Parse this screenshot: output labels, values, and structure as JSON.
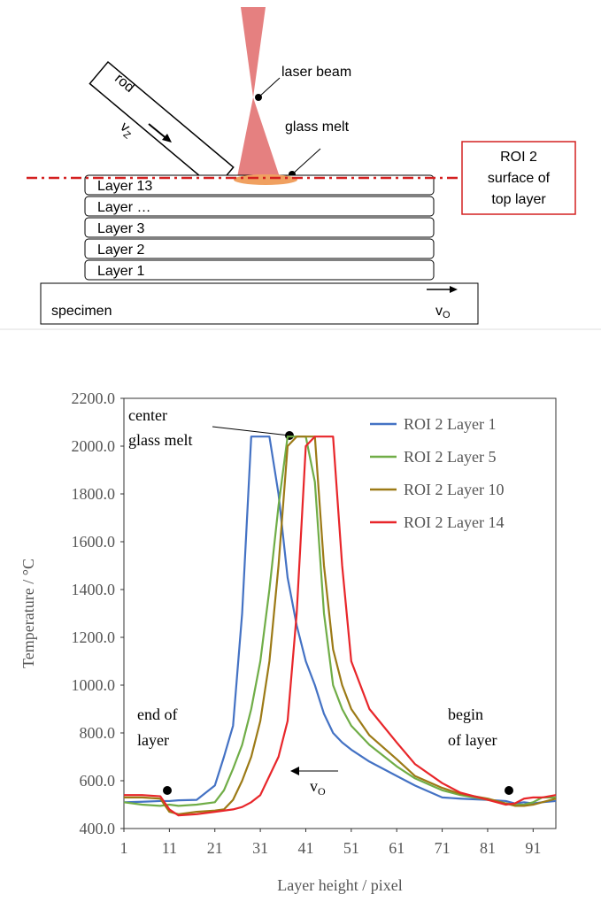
{
  "diagram": {
    "rod": "rod",
    "vz": {
      "main": "v",
      "sub": "Z"
    },
    "laser_beam": "laser beam",
    "glass_melt": "glass melt",
    "roi_box": [
      "ROI 2",
      "surface of",
      "top layer"
    ],
    "layers": [
      "Layer 13",
      "Layer …",
      "Layer 3",
      "Layer 2",
      "Layer 1"
    ],
    "specimen": "specimen",
    "vo": {
      "main": "v",
      "sub": "O"
    }
  },
  "chart_data": {
    "type": "line",
    "x_label": "Layer height / pixel",
    "y_label": "Temperature / °C",
    "xlim": [
      1,
      96
    ],
    "ylim": [
      400,
      2200
    ],
    "xticks": [
      1,
      11,
      21,
      31,
      41,
      51,
      61,
      71,
      81,
      91
    ],
    "yticks": [
      {
        "value": 400,
        "label": "400.0"
      },
      {
        "value": 600,
        "label": "600.0"
      },
      {
        "value": 800,
        "label": "800.0"
      },
      {
        "value": 1000,
        "label": "1000.0"
      },
      {
        "value": 1200,
        "label": "1200.0"
      },
      {
        "value": 1400,
        "label": "1400.0"
      },
      {
        "value": 1600,
        "label": "1600.0"
      },
      {
        "value": 1800,
        "label": "1800.0"
      },
      {
        "value": 2000,
        "label": "2000.0"
      },
      {
        "value": 2200,
        "label": "2200.0"
      }
    ],
    "legend": "upper right",
    "x": [
      1,
      5,
      9,
      11,
      13,
      17,
      21,
      23,
      25,
      27,
      29,
      31,
      33,
      35,
      37,
      39,
      41,
      43,
      45,
      47,
      49,
      51,
      55,
      61,
      65,
      71,
      75,
      81,
      85,
      87,
      89,
      91,
      93,
      96
    ],
    "series": [
      {
        "name": "ROI 2 Layer 1",
        "color": "#4472c4",
        "values": [
          510,
          512,
          515,
          515,
          518,
          520,
          580,
          700,
          830,
          1300,
          2040,
          2040,
          2040,
          1800,
          1450,
          1250,
          1100,
          1000,
          880,
          800,
          760,
          730,
          680,
          620,
          580,
          530,
          525,
          520,
          515,
          505,
          510,
          505,
          510,
          515
        ]
      },
      {
        "name": "ROI 2 Layer 5",
        "color": "#70ad47",
        "values": [
          510,
          500,
          495,
          500,
          495,
          500,
          510,
          560,
          650,
          750,
          900,
          1100,
          1400,
          1750,
          2040,
          2040,
          2040,
          1850,
          1300,
          1000,
          900,
          830,
          750,
          660,
          610,
          560,
          540,
          520,
          505,
          500,
          500,
          510,
          530,
          530
        ]
      },
      {
        "name": "ROI 2 Layer 10",
        "color": "#9c7a16",
        "values": [
          530,
          530,
          525,
          470,
          460,
          470,
          475,
          480,
          520,
          600,
          700,
          850,
          1100,
          1500,
          2000,
          2040,
          2040,
          2040,
          1500,
          1150,
          1000,
          900,
          790,
          690,
          620,
          570,
          545,
          525,
          505,
          495,
          495,
          500,
          510,
          525
        ]
      },
      {
        "name": "ROI 2 Layer 14",
        "color": "#e8262a",
        "values": [
          540,
          540,
          535,
          480,
          455,
          460,
          470,
          475,
          480,
          490,
          510,
          540,
          620,
          700,
          850,
          1300,
          2000,
          2040,
          2040,
          2040,
          1500,
          1100,
          900,
          760,
          670,
          590,
          550,
          520,
          500,
          505,
          525,
          530,
          530,
          540
        ]
      }
    ],
    "annotations": {
      "center": [
        "center",
        "glass melt"
      ],
      "end": [
        "end of",
        "layer"
      ],
      "begin": [
        "begin",
        "of layer"
      ],
      "vo": {
        "main": "v",
        "sub": "O"
      }
    }
  }
}
